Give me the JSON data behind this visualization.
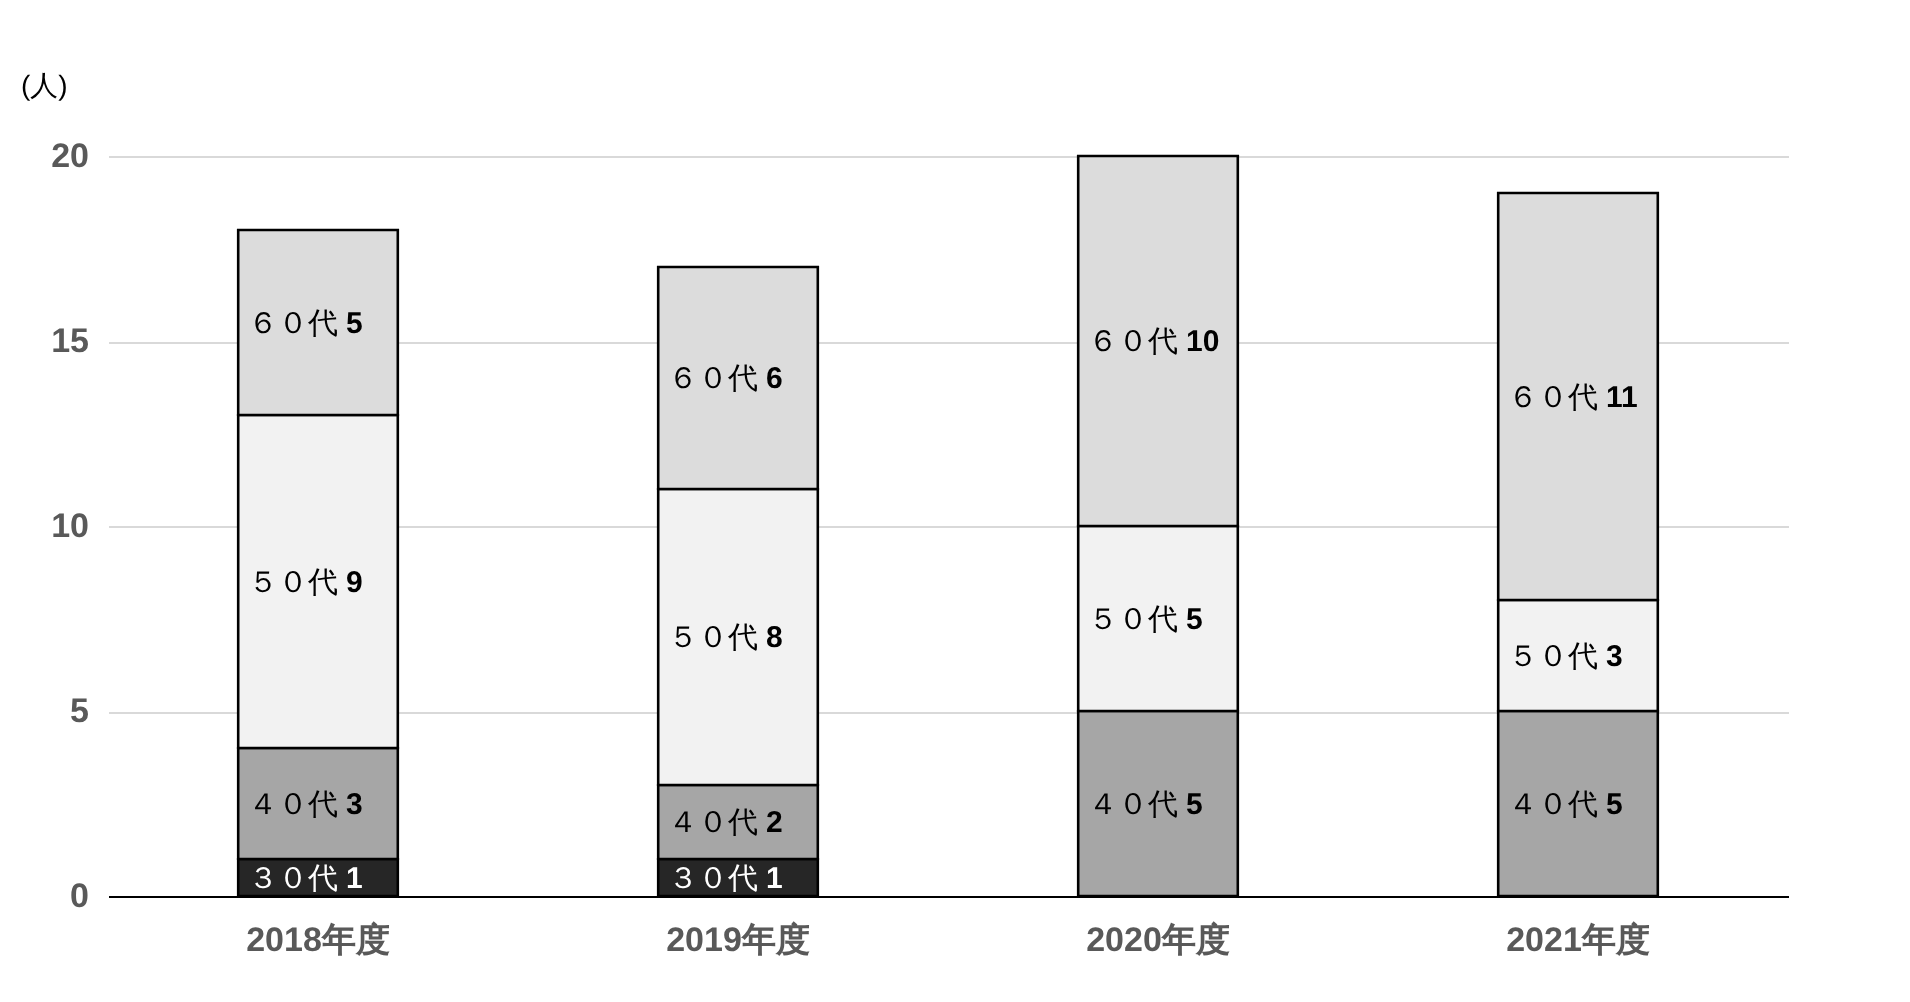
{
  "chart_data": {
    "type": "bar",
    "stacked": true,
    "ylabel": "(人)",
    "categories": [
      "2018年度",
      "2019年度",
      "2020年度",
      "2021年度"
    ],
    "series": [
      {
        "name": "３０代",
        "color": "#262626",
        "values": [
          1,
          1,
          null,
          null
        ]
      },
      {
        "name": "４０代",
        "color": "#a6a6a6",
        "values": [
          3,
          2,
          5,
          5
        ]
      },
      {
        "name": "５０代",
        "color": "#f2f2f2",
        "values": [
          9,
          8,
          5,
          3
        ]
      },
      {
        "name": "６０代",
        "color": "#dcdcdc",
        "values": [
          5,
          6,
          10,
          11
        ]
      }
    ],
    "ylim": [
      0,
      20
    ],
    "yticks": [
      0,
      5,
      10,
      15,
      20
    ],
    "grid": "y",
    "data_labels": true,
    "legend": false
  }
}
